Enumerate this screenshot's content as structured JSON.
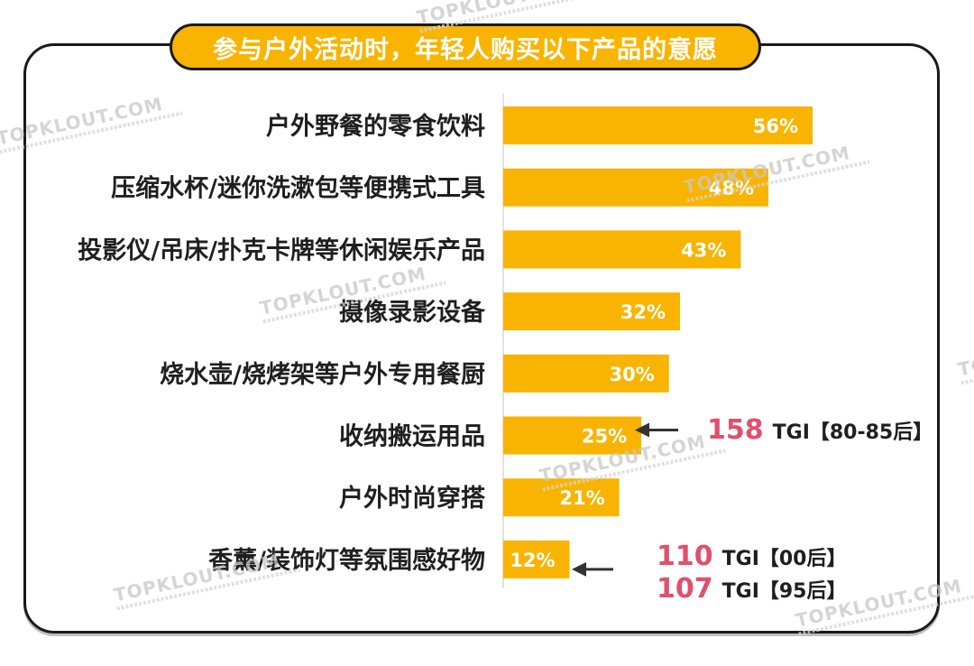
{
  "title": "参与户外活动时，年轻人购买以下产品的意愿",
  "watermark": "TOPKLOUT.COM",
  "chart_data": {
    "type": "bar",
    "orientation": "horizontal",
    "categories": [
      "户外野餐的零食饮料",
      "压缩水杯/迷你洗漱包等便携式工具",
      "投影仪/吊床/扑克卡牌等休闲娱乐产品",
      "摄像录影设备",
      "烧水壶/烧烤架等户外专用餐厨",
      "收纳搬运用品",
      "户外时尚穿搭",
      "香薰/装饰灯等氛围感好物"
    ],
    "values": [
      56,
      48,
      43,
      32,
      30,
      25,
      21,
      12
    ],
    "value_labels": [
      "56%",
      "48%",
      "43%",
      "32%",
      "30%",
      "25%",
      "21%",
      "12%"
    ],
    "xlim": [
      0,
      100
    ],
    "bar_color": "#f8b400",
    "grid": false,
    "annotations": [
      {
        "category": "收纳搬运用品",
        "lines": [
          {
            "tgi": "158",
            "label": "TGI【80-85后】"
          }
        ]
      },
      {
        "category": "香薰/装饰灯等氛围感好物",
        "lines": [
          {
            "tgi": "110",
            "label": "TGI【00后】"
          },
          {
            "tgi": "107",
            "label": "TGI【95后】"
          }
        ]
      }
    ]
  },
  "colors": {
    "accent": "#f8b400",
    "highlight": "#e0506a",
    "text": "#1f1f1f"
  }
}
